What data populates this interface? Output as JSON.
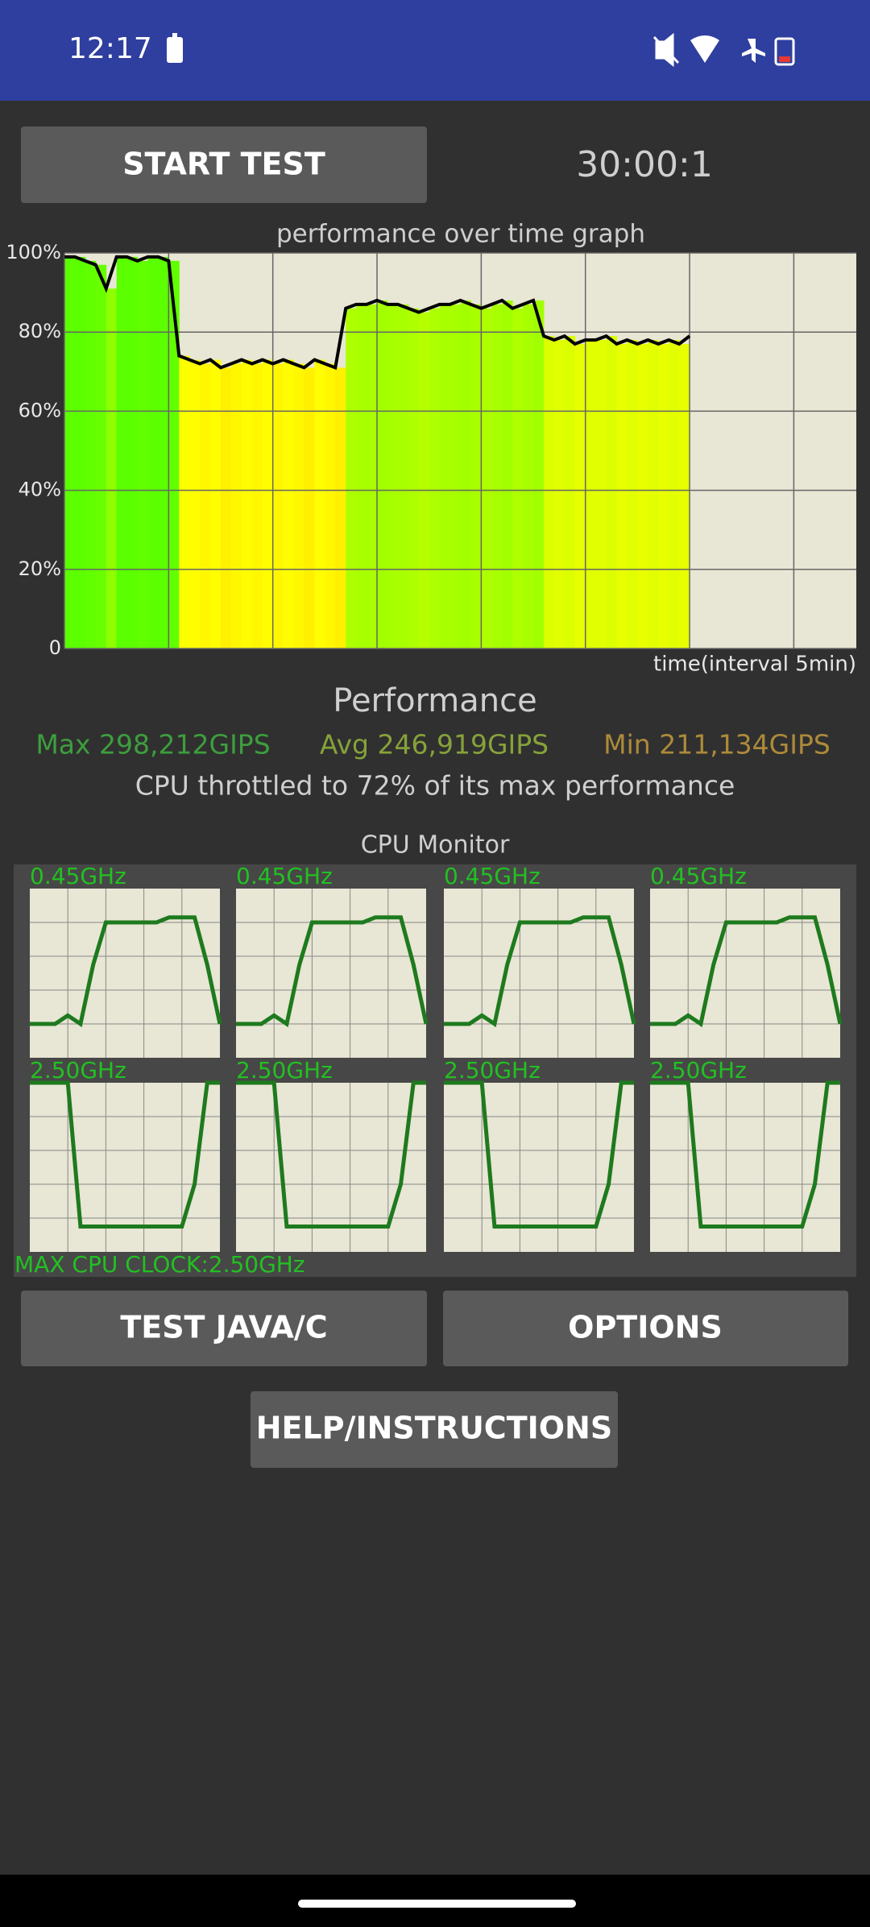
{
  "status_bar": {
    "time": "12:17"
  },
  "buttons": {
    "start": "START TEST",
    "test_java": "TEST JAVA/C",
    "options": "OPTIONS",
    "help": "HELP/INSTRUCTIONS"
  },
  "timer": "30:00:1",
  "performance_graph": {
    "type": "line",
    "title": "performance over time graph",
    "x_label": "time(interval 5min)",
    "x": [
      0,
      0.5,
      1,
      1.5,
      2,
      2.5,
      3,
      3.5,
      4,
      4.5,
      5,
      5.5,
      6,
      6.5,
      7,
      7.5,
      8,
      8.5,
      9,
      9.5,
      10,
      10.5,
      11,
      11.5,
      12,
      12.5,
      13,
      13.5,
      14,
      14.5,
      15,
      15.5,
      16,
      16.5,
      17,
      17.5,
      18,
      18.5,
      19,
      19.5,
      20,
      20.5,
      21,
      21.5,
      22,
      22.5,
      23,
      23.5,
      24,
      24.5,
      25,
      25.5,
      26,
      26.5,
      27,
      27.5,
      28,
      28.5,
      29,
      29.5,
      30
    ],
    "values": [
      99,
      99,
      98,
      97,
      91,
      99,
      99,
      98,
      99,
      99,
      98,
      74,
      73,
      72,
      73,
      71,
      72,
      73,
      72,
      73,
      72,
      73,
      72,
      71,
      73,
      72,
      71,
      86,
      87,
      87,
      88,
      87,
      87,
      86,
      85,
      86,
      87,
      87,
      88,
      87,
      86,
      87,
      88,
      86,
      87,
      88,
      79,
      78,
      79,
      77,
      78,
      78,
      79,
      77,
      78,
      77,
      78,
      77,
      78,
      77,
      79
    ],
    "xlim": [
      0,
      38
    ],
    "xticks": [
      0,
      5,
      10,
      15,
      20,
      25,
      30,
      35
    ],
    "ylim": [
      0,
      100
    ],
    "yticks": [
      0,
      {
        "value": 20,
        "label": "20%"
      },
      {
        "value": 40,
        "label": "40%"
      },
      {
        "value": 60,
        "label": "60%"
      },
      {
        "value": 80,
        "label": "80%"
      },
      {
        "value": 100,
        "label": "100%"
      }
    ],
    "line_color": "#000000",
    "grid": true
  },
  "performance": {
    "title": "Performance",
    "max": "Max 298,212GIPS",
    "avg": "Avg 246,919GIPS",
    "min": "Min 211,134GIPS",
    "summary": "CPU throttled to 72% of its max performance"
  },
  "cpu_monitor": {
    "title": "CPU Monitor",
    "max_clock": "MAX CPU CLOCK:2.50GHz",
    "line_color": "#1e7a1e",
    "cores": [
      {
        "label": "0.45GHz",
        "values": [
          20,
          20,
          20,
          25,
          20,
          55,
          80,
          80,
          80,
          80,
          80,
          83,
          83,
          83,
          55,
          20
        ]
      },
      {
        "label": "0.45GHz",
        "values": [
          20,
          20,
          20,
          25,
          20,
          55,
          80,
          80,
          80,
          80,
          80,
          83,
          83,
          83,
          55,
          20
        ]
      },
      {
        "label": "0.45GHz",
        "values": [
          20,
          20,
          20,
          25,
          20,
          55,
          80,
          80,
          80,
          80,
          80,
          83,
          83,
          83,
          55,
          20
        ]
      },
      {
        "label": "0.45GHz",
        "values": [
          20,
          20,
          20,
          25,
          20,
          55,
          80,
          80,
          80,
          80,
          80,
          83,
          83,
          83,
          55,
          20
        ]
      },
      {
        "label": "2.50GHz",
        "values": [
          100,
          100,
          100,
          100,
          15,
          15,
          15,
          15,
          15,
          15,
          15,
          15,
          15,
          40,
          100,
          100
        ]
      },
      {
        "label": "2.50GHz",
        "values": [
          100,
          100,
          100,
          100,
          15,
          15,
          15,
          15,
          15,
          15,
          15,
          15,
          15,
          40,
          100,
          100
        ]
      },
      {
        "label": "2.50GHz",
        "values": [
          100,
          100,
          100,
          100,
          15,
          15,
          15,
          15,
          15,
          15,
          15,
          15,
          15,
          40,
          100,
          100
        ]
      },
      {
        "label": "2.50GHz",
        "values": [
          100,
          100,
          100,
          100,
          15,
          15,
          15,
          15,
          15,
          15,
          15,
          15,
          15,
          40,
          100,
          100
        ]
      }
    ]
  }
}
